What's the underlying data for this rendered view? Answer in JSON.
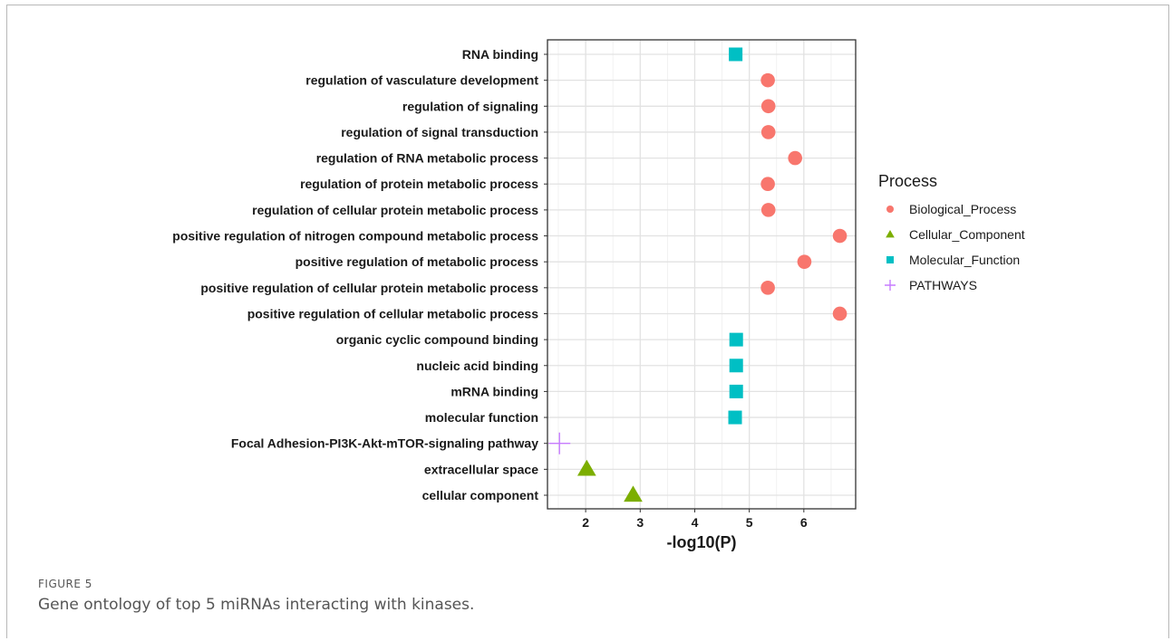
{
  "figure": {
    "label": "FIGURE 5",
    "caption": "Gene ontology of top 5 miRNAs interacting with kinases."
  },
  "chart_data": {
    "type": "scatter",
    "xlabel": "-log10(P)",
    "ylabel": "",
    "xlim": [
      1.3,
      6.95
    ],
    "xticks": [
      2,
      3,
      4,
      5,
      6
    ],
    "grid": true,
    "legend": {
      "title": "Process",
      "position": "right"
    },
    "categories": [
      "RNA binding",
      "regulation of vasculature development",
      "regulation of signaling",
      "regulation of signal transduction",
      "regulation of RNA metabolic process",
      "regulation of protein metabolic process",
      "regulation of cellular protein metabolic process",
      "positive regulation of nitrogen compound metabolic process",
      "positive regulation of metabolic process",
      "positive regulation of cellular protein metabolic process",
      "positive regulation of cellular metabolic process",
      "organic cyclic compound binding",
      "nucleic acid binding",
      "mRNA binding",
      "molecular function",
      "Focal Adhesion-PI3K-Akt-mTOR-signaling pathway",
      "extracellular space",
      "cellular component"
    ],
    "series": [
      {
        "name": "Biological_Process",
        "marker": "circle",
        "color": "#F8766D",
        "points": [
          {
            "y": "regulation of vasculature development",
            "x": 5.34
          },
          {
            "y": "regulation of signaling",
            "x": 5.35
          },
          {
            "y": "regulation of signal transduction",
            "x": 5.35
          },
          {
            "y": "regulation of RNA metabolic process",
            "x": 5.84
          },
          {
            "y": "regulation of protein metabolic process",
            "x": 5.34
          },
          {
            "y": "regulation of cellular protein metabolic process",
            "x": 5.35
          },
          {
            "y": "positive regulation of nitrogen compound metabolic process",
            "x": 6.66
          },
          {
            "y": "positive regulation of metabolic process",
            "x": 6.01
          },
          {
            "y": "positive regulation of cellular protein metabolic process",
            "x": 5.34
          },
          {
            "y": "positive regulation of cellular metabolic process",
            "x": 6.66
          }
        ]
      },
      {
        "name": "Cellular_Component",
        "marker": "triangle",
        "color": "#7CAE00",
        "points": [
          {
            "y": "extracellular space",
            "x": 2.02
          },
          {
            "y": "cellular component",
            "x": 2.87
          }
        ]
      },
      {
        "name": "Molecular_Function",
        "marker": "square",
        "color": "#00BFC4",
        "points": [
          {
            "y": "RNA binding",
            "x": 4.75
          },
          {
            "y": "organic cyclic compound binding",
            "x": 4.76
          },
          {
            "y": "nucleic acid binding",
            "x": 4.76
          },
          {
            "y": "mRNA binding",
            "x": 4.76
          },
          {
            "y": "molecular function",
            "x": 4.74
          }
        ]
      },
      {
        "name": "PATHWAYS",
        "marker": "plus",
        "color": "#C77CFF",
        "points": [
          {
            "y": "Focal Adhesion-PI3K-Akt-mTOR-signaling pathway",
            "x": 1.52
          }
        ]
      }
    ]
  }
}
